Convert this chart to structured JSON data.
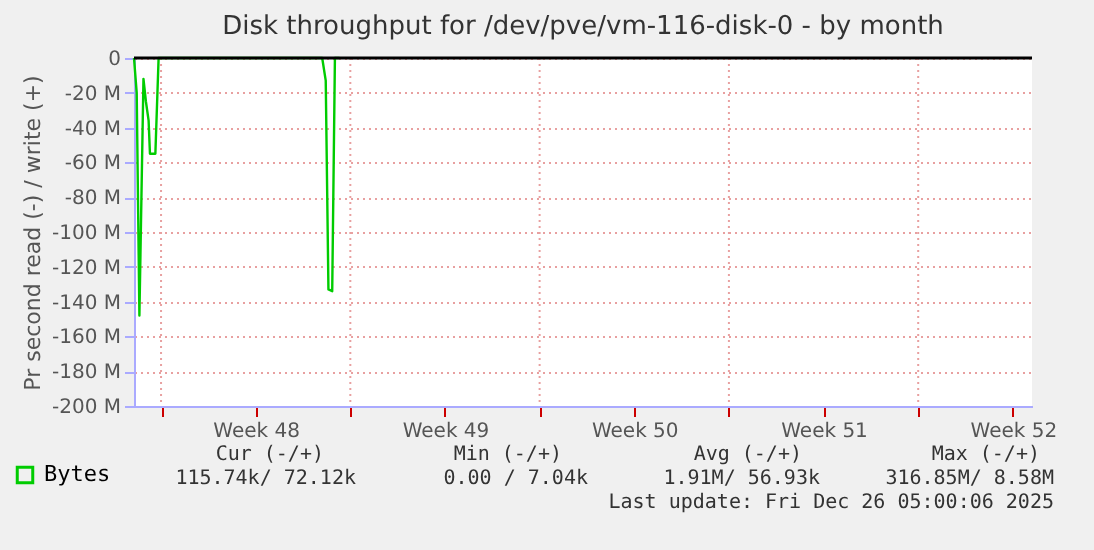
{
  "chart_data": {
    "type": "line",
    "title": "Disk throughput for /dev/pve/vm-116-disk-0 - by month",
    "ylabel": "Pr second read (-) / write (+)",
    "x": [
      "2025-11-23T00:00",
      "2025-11-23T02:24",
      "2025-11-23T04:48",
      "2025-11-23T08:24",
      "2025-11-23T10:34",
      "2025-11-23T12:58",
      "2025-11-23T14:10",
      "2025-11-23T18:58",
      "2025-11-23T21:50",
      "2025-11-29T23:02",
      "2025-11-30T02:10",
      "2025-11-30T04:34",
      "2025-11-30T07:55",
      "2025-11-30T10:19",
      "2025-11-30T14:24"
    ],
    "series": [
      {
        "name": "Bytes",
        "color": "#00cc00",
        "values": [
          0,
          -20,
          -148,
          -12,
          -25,
          -36,
          -55,
          -55,
          0,
          0,
          -13,
          -133,
          -134,
          0,
          0
        ]
      }
    ],
    "xlim": [
      "2025-11-23T00:00",
      "2025-12-26T05:00"
    ],
    "xticks": [
      {
        "value": "2025-11-24",
        "label": null
      },
      {
        "value": "2025-11-27T12:00",
        "label": "Week 48"
      },
      {
        "value": "2025-12-01",
        "label": null
      },
      {
        "value": "2025-12-04T12:00",
        "label": "Week 49"
      },
      {
        "value": "2025-12-08",
        "label": null
      },
      {
        "value": "2025-12-11T12:00",
        "label": "Week 50"
      },
      {
        "value": "2025-12-15",
        "label": null
      },
      {
        "value": "2025-12-18T12:00",
        "label": "Week 51"
      },
      {
        "value": "2025-12-22",
        "label": null
      },
      {
        "value": "2025-12-25T12:00",
        "label": "Week 52"
      }
    ],
    "ylim": [
      -200,
      0
    ],
    "yticks": [
      {
        "value": -200,
        "label": "-200 M"
      },
      {
        "value": -180,
        "label": "-180 M"
      },
      {
        "value": -160,
        "label": "-160 M"
      },
      {
        "value": -140,
        "label": "-140 M"
      },
      {
        "value": -120,
        "label": "-120 M"
      },
      {
        "value": -100,
        "label": "-100 M"
      },
      {
        "value": -80,
        "label": "-80 M"
      },
      {
        "value": -60,
        "label": "-60 M"
      },
      {
        "value": -40,
        "label": "-40 M"
      },
      {
        "value": -20,
        "label": "-20 M"
      },
      0
    ],
    "ref_lines": [
      {
        "axis": "y",
        "value": 0,
        "color": "#000000"
      }
    ],
    "grid": true,
    "legend": "bottom left",
    "marker": "none",
    "line_style": "solid",
    "annotations": [
      "Cur (-/+)",
      "Min (-/+)",
      "Avg (-/+)",
      "Max (-/+)",
      "115.74k/  72.12k",
      "0.00 /   7.04k",
      "1.91M/  56.93k",
      "316.85M/   8.58M",
      "Last update: Fri Dec 26 05:00:06 2025"
    ]
  }
}
